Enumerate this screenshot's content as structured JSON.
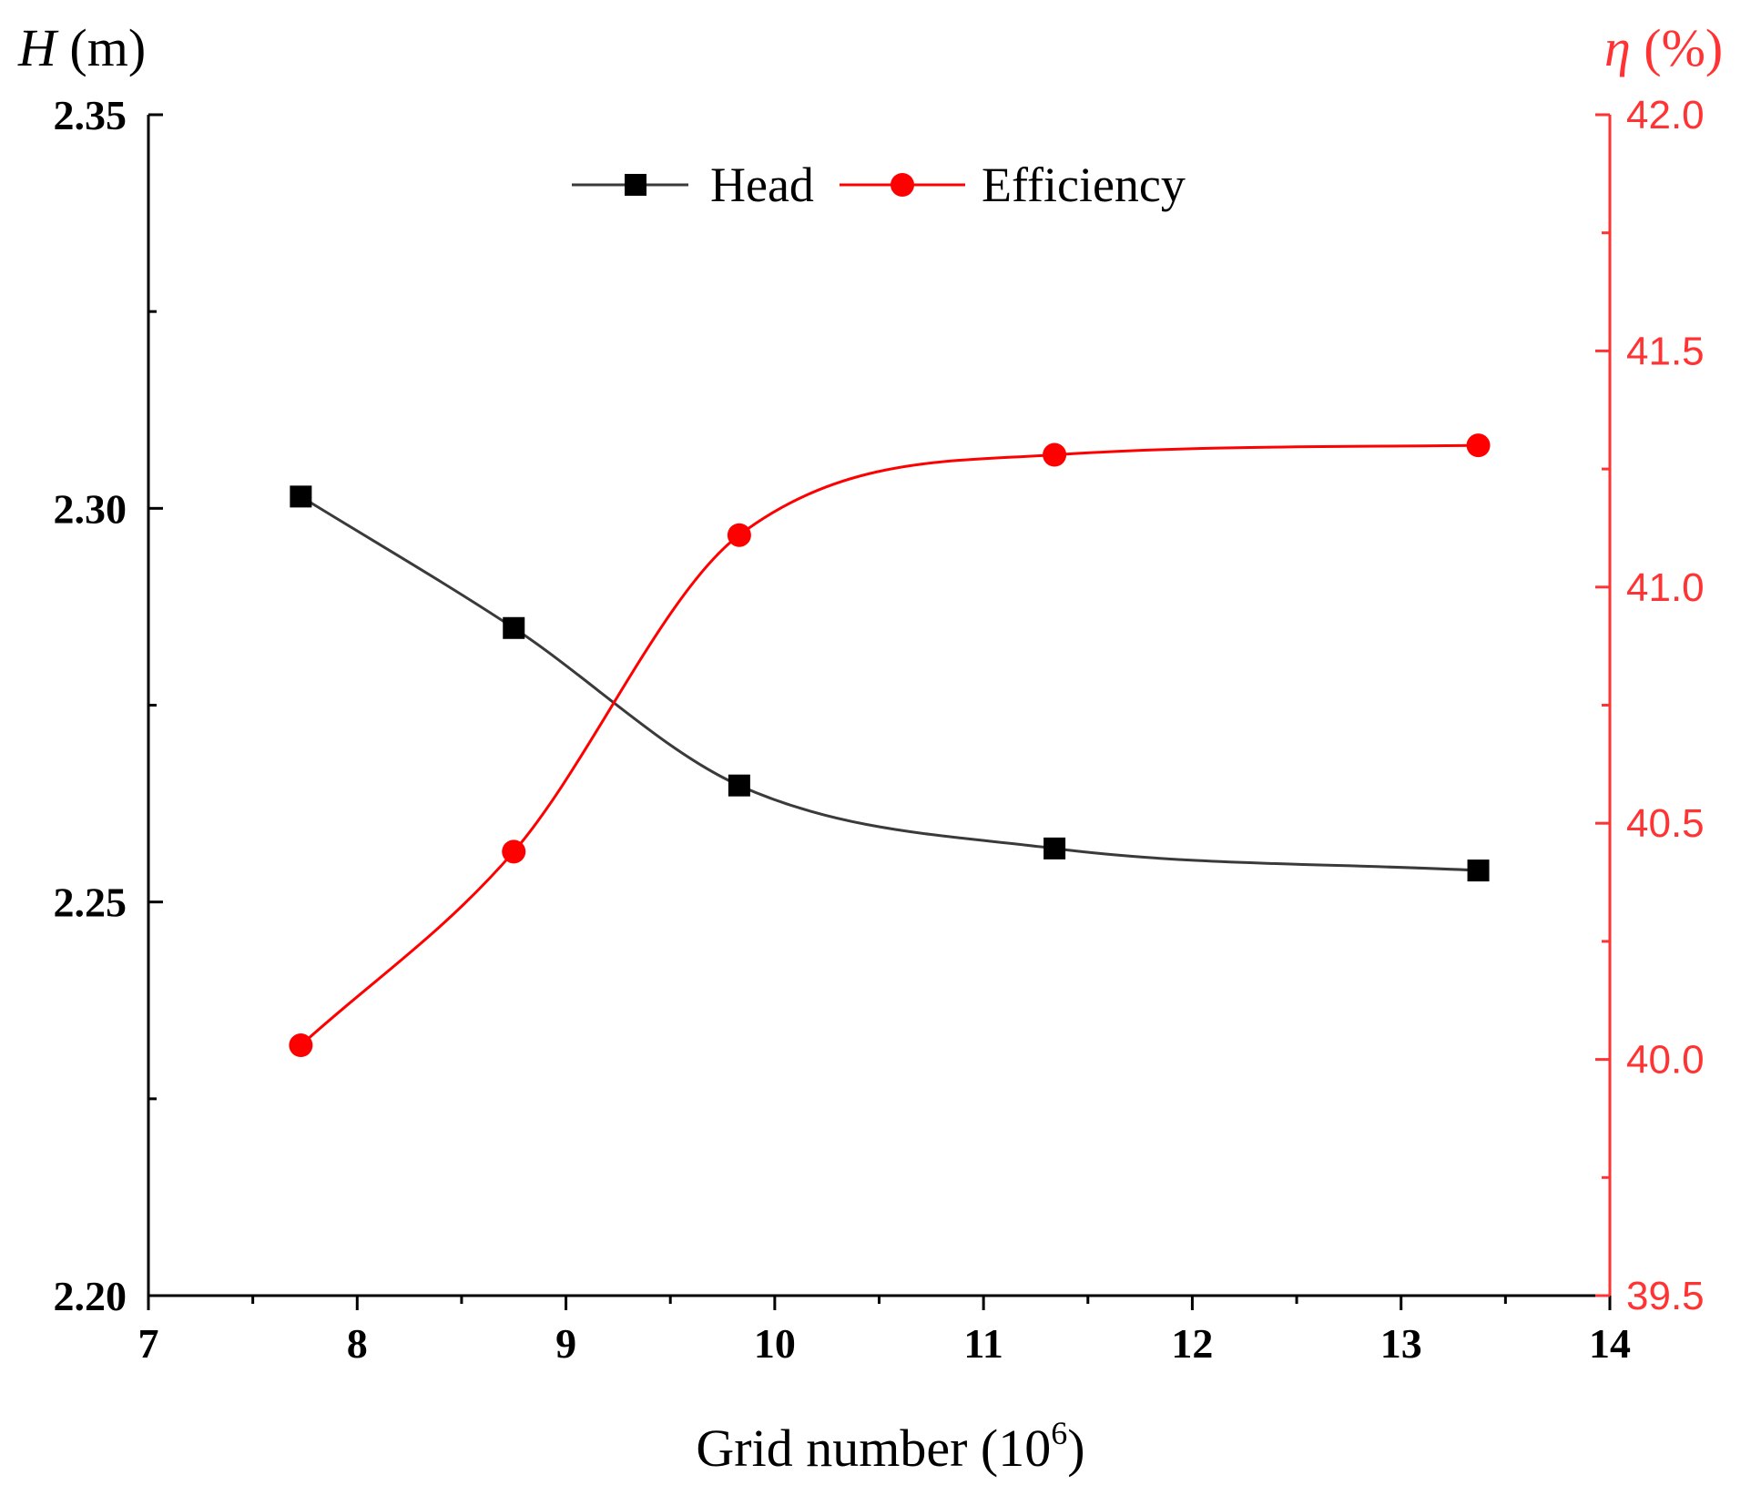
{
  "chart_data": {
    "type": "line",
    "title": "",
    "xlabel": "Grid number (10",
    "xlabel_sup": "6",
    "xlabel_close": ")",
    "ylabel_left_var": "H",
    "ylabel_left_unit": " (m)",
    "ylabel_right_var": "η",
    "ylabel_right_unit": " (%)",
    "xlim": [
      7,
      14
    ],
    "ylim_left": [
      2.2,
      2.35
    ],
    "ylim_right": [
      39.5,
      42.0
    ],
    "x_ticks": [
      "7",
      "8",
      "9",
      "10",
      "11",
      "12",
      "13",
      "14"
    ],
    "y_left_ticks": [
      "2.20",
      "2.25",
      "2.30",
      "2.35"
    ],
    "y_right_ticks": [
      "39.5",
      "40.0",
      "40.5",
      "41.0",
      "41.5",
      "42.0"
    ],
    "legend_position": "top-center",
    "colors": {
      "head": "#000000",
      "head_line": "#3a3a3a",
      "efficiency": "#ff0000",
      "right_axis": "#ff3333"
    },
    "series": [
      {
        "name": "Head",
        "axis": "left",
        "marker": "square",
        "x": [
          7.73,
          8.75,
          9.83,
          11.34,
          13.37
        ],
        "values": [
          2.3015,
          2.2848,
          2.2648,
          2.2568,
          2.254
        ]
      },
      {
        "name": "Efficiency",
        "axis": "right",
        "marker": "circle",
        "x": [
          7.73,
          8.75,
          9.83,
          11.34,
          13.37
        ],
        "values": [
          40.03,
          40.44,
          41.11,
          41.28,
          41.3
        ]
      }
    ]
  }
}
